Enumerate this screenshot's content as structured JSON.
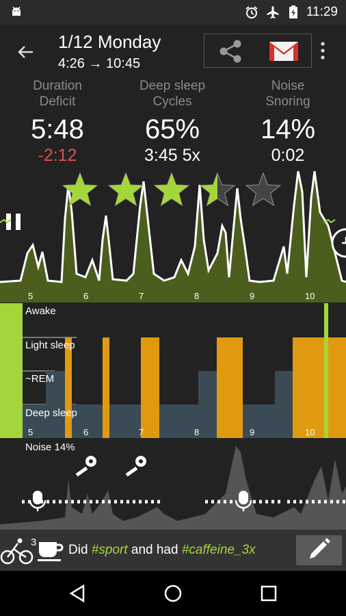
{
  "status_bar": {
    "time": "11:29",
    "icons": [
      "android-icon",
      "alarm-icon",
      "airplane-icon",
      "battery-charging-icon"
    ]
  },
  "header": {
    "title": "1/12 Monday",
    "subtitle": "4:26 → 10:45"
  },
  "stats": [
    {
      "label1": "Duration",
      "label2": "Deficit",
      "value": "5:48",
      "sub": "-2:12"
    },
    {
      "label1": "Deep sleep",
      "label2": "Cycles",
      "value": "65%",
      "sub": "3:45 5x"
    },
    {
      "label1": "Noise",
      "label2": "Snoring",
      "value": "14%",
      "sub": "0:02"
    }
  ],
  "rating": {
    "value": 3.5,
    "max": 5
  },
  "hour_ticks": [
    "5",
    "6",
    "7",
    "8",
    "9",
    "10"
  ],
  "hypnogram": {
    "labels": {
      "awake": "Awake",
      "light": "Light sleep",
      "rem": "~REM",
      "deep": "Deep sleep"
    }
  },
  "noise": {
    "label": "Noise 14%"
  },
  "tag_bar": {
    "sport_count": "3",
    "text_did": "Did",
    "tag_sport": "#sport",
    "text_and": "and had",
    "tag_caffeine": "#caffeine_3x"
  },
  "colors": {
    "green": "#a4d63b",
    "orange": "#e09a10",
    "blue_gray": "#3b4b55",
    "chart_fill": "#4b5e1e",
    "red": "#e0504a"
  }
}
